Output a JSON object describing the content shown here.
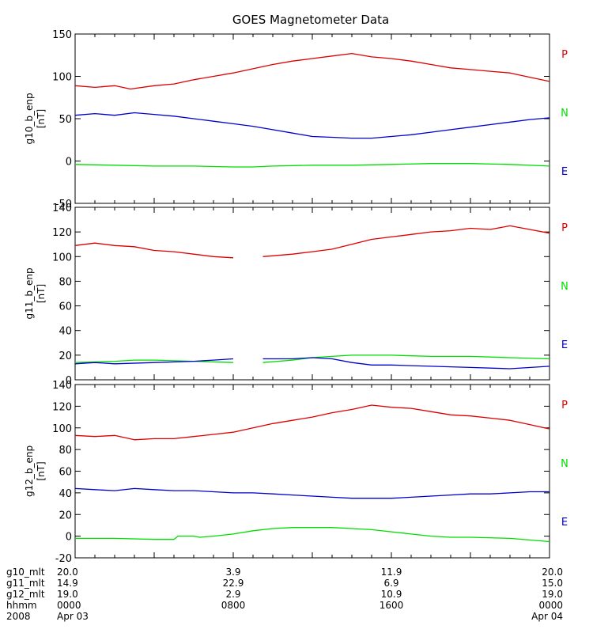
{
  "chart_data": {
    "type": "line",
    "title": "GOES Magnetometer Data",
    "x_domain": [
      0,
      24
    ],
    "panels": [
      {
        "ylabel": "g10_b_enp",
        "yunit": "[nT]",
        "ylim": [
          -50,
          150
        ],
        "yticks": [
          -50,
          0,
          50,
          100,
          150
        ],
        "series": [
          {
            "name": "P",
            "color": "#dd0000",
            "points": [
              [
                0,
                89
              ],
              [
                1,
                87
              ],
              [
                2,
                89
              ],
              [
                2.8,
                85
              ],
              [
                4,
                89
              ],
              [
                5,
                91
              ],
              [
                6,
                96
              ],
              [
                7,
                100
              ],
              [
                8,
                104
              ],
              [
                9,
                109
              ],
              [
                10,
                114
              ],
              [
                11,
                118
              ],
              [
                12,
                121
              ],
              [
                13,
                124
              ],
              [
                14,
                127
              ],
              [
                15,
                123
              ],
              [
                16,
                121
              ],
              [
                17,
                118
              ],
              [
                18,
                114
              ],
              [
                19,
                110
              ],
              [
                20,
                108
              ],
              [
                21,
                106
              ],
              [
                22,
                104
              ],
              [
                23,
                99
              ],
              [
                24,
                94
              ]
            ]
          },
          {
            "name": "N",
            "color": "#00dd00",
            "points": [
              [
                0,
                -4
              ],
              [
                2,
                -5
              ],
              [
                4,
                -6
              ],
              [
                6,
                -6
              ],
              [
                8,
                -7
              ],
              [
                9,
                -7
              ],
              [
                10,
                -6
              ],
              [
                12,
                -5
              ],
              [
                14,
                -5
              ],
              [
                16,
                -4
              ],
              [
                18,
                -3
              ],
              [
                20,
                -3
              ],
              [
                22,
                -4
              ],
              [
                24,
                -6
              ]
            ]
          },
          {
            "name": "E",
            "color": "#0000cc",
            "points": [
              [
                0,
                54
              ],
              [
                1,
                56
              ],
              [
                2,
                54
              ],
              [
                3,
                57
              ],
              [
                4,
                55
              ],
              [
                5,
                53
              ],
              [
                6,
                50
              ],
              [
                7,
                47
              ],
              [
                8,
                44
              ],
              [
                9,
                41
              ],
              [
                10,
                37
              ],
              [
                11,
                33
              ],
              [
                12,
                29
              ],
              [
                13,
                28
              ],
              [
                14,
                27
              ],
              [
                15,
                27
              ],
              [
                16,
                29
              ],
              [
                17,
                31
              ],
              [
                18,
                34
              ],
              [
                19,
                37
              ],
              [
                20,
                40
              ],
              [
                21,
                43
              ],
              [
                22,
                46
              ],
              [
                23,
                49
              ],
              [
                24,
                51
              ]
            ]
          }
        ]
      },
      {
        "ylabel": "g11_b_enp",
        "yunit": "[nT]",
        "ylim": [
          0,
          140
        ],
        "yticks": [
          0,
          20,
          40,
          60,
          80,
          100,
          120,
          140
        ],
        "series": [
          {
            "name": "P",
            "color": "#dd0000",
            "points": [
              [
                0,
                109
              ],
              [
                1,
                111
              ],
              [
                2,
                109
              ],
              [
                3,
                108
              ],
              [
                4,
                105
              ],
              [
                5,
                104
              ],
              [
                6,
                102
              ],
              [
                7,
                100
              ],
              [
                8,
                99
              ],
              [
                null,
                null
              ],
              [
                9.5,
                100
              ],
              [
                11,
                102
              ],
              [
                12,
                104
              ],
              [
                13,
                106
              ],
              [
                14,
                110
              ],
              [
                15,
                114
              ],
              [
                16,
                116
              ],
              [
                17,
                118
              ],
              [
                18,
                120
              ],
              [
                19,
                121
              ],
              [
                20,
                123
              ],
              [
                21,
                122
              ],
              [
                22,
                125
              ],
              [
                23,
                122
              ],
              [
                24,
                119
              ]
            ]
          },
          {
            "name": "N",
            "color": "#00dd00",
            "points": [
              [
                0,
                14
              ],
              [
                2,
                15
              ],
              [
                3,
                16
              ],
              [
                4,
                16
              ],
              [
                6,
                15
              ],
              [
                8,
                14
              ],
              [
                null,
                null
              ],
              [
                9.5,
                14
              ],
              [
                11,
                16
              ],
              [
                12,
                18
              ],
              [
                13,
                19
              ],
              [
                14,
                20
              ],
              [
                16,
                20
              ],
              [
                18,
                19
              ],
              [
                20,
                19
              ],
              [
                22,
                18
              ],
              [
                24,
                17
              ]
            ]
          },
          {
            "name": "E",
            "color": "#0000cc",
            "points": [
              [
                0,
                13
              ],
              [
                1,
                14
              ],
              [
                2,
                13
              ],
              [
                4,
                14
              ],
              [
                6,
                15
              ],
              [
                7,
                16
              ],
              [
                8,
                17
              ],
              [
                null,
                null
              ],
              [
                9.5,
                17
              ],
              [
                11,
                17
              ],
              [
                12,
                18
              ],
              [
                13,
                17
              ],
              [
                14,
                14
              ],
              [
                15,
                12
              ],
              [
                16,
                12
              ],
              [
                18,
                11
              ],
              [
                20,
                10
              ],
              [
                22,
                9
              ],
              [
                24,
                11
              ]
            ]
          }
        ]
      },
      {
        "ylabel": "g12_b_enp",
        "yunit": "[nT]",
        "ylim": [
          -20,
          140
        ],
        "yticks": [
          -20,
          0,
          20,
          40,
          60,
          80,
          100,
          120,
          140
        ],
        "series": [
          {
            "name": "P",
            "color": "#dd0000",
            "points": [
              [
                0,
                93
              ],
              [
                1,
                92
              ],
              [
                2,
                93
              ],
              [
                3,
                89
              ],
              [
                4,
                90
              ],
              [
                5,
                90
              ],
              [
                6,
                92
              ],
              [
                7,
                94
              ],
              [
                8,
                96
              ],
              [
                9,
                100
              ],
              [
                10,
                104
              ],
              [
                11,
                107
              ],
              [
                12,
                110
              ],
              [
                13,
                114
              ],
              [
                14,
                117
              ],
              [
                15,
                121
              ],
              [
                16,
                119
              ],
              [
                17,
                118
              ],
              [
                18,
                115
              ],
              [
                19,
                112
              ],
              [
                20,
                111
              ],
              [
                21,
                109
              ],
              [
                22,
                107
              ],
              [
                23,
                103
              ],
              [
                24,
                99
              ]
            ]
          },
          {
            "name": "N",
            "color": "#00dd00",
            "points": [
              [
                0,
                -2
              ],
              [
                2,
                -2
              ],
              [
                4,
                -3
              ],
              [
                5,
                -3
              ],
              [
                5.2,
                0
              ],
              [
                6,
                0
              ],
              [
                6.3,
                -1
              ],
              [
                7,
                0
              ],
              [
                8,
                2
              ],
              [
                9,
                5
              ],
              [
                10,
                7
              ],
              [
                11,
                8
              ],
              [
                12,
                8
              ],
              [
                13,
                8
              ],
              [
                14,
                7
              ],
              [
                15,
                6
              ],
              [
                16,
                4
              ],
              [
                17,
                2
              ],
              [
                18,
                0
              ],
              [
                19,
                -1
              ],
              [
                20,
                -1
              ],
              [
                22,
                -2
              ],
              [
                24,
                -5
              ]
            ]
          },
          {
            "name": "E",
            "color": "#0000cc",
            "points": [
              [
                0,
                44
              ],
              [
                1,
                43
              ],
              [
                2,
                42
              ],
              [
                3,
                44
              ],
              [
                4,
                43
              ],
              [
                5,
                42
              ],
              [
                6,
                42
              ],
              [
                7,
                41
              ],
              [
                8,
                40
              ],
              [
                9,
                40
              ],
              [
                10,
                39
              ],
              [
                11,
                38
              ],
              [
                12,
                37
              ],
              [
                13,
                36
              ],
              [
                14,
                35
              ],
              [
                15,
                35
              ],
              [
                16,
                35
              ],
              [
                17,
                36
              ],
              [
                18,
                37
              ],
              [
                19,
                38
              ],
              [
                20,
                39
              ],
              [
                21,
                39
              ],
              [
                22,
                40
              ],
              [
                23,
                41
              ],
              [
                24,
                41
              ]
            ]
          }
        ]
      }
    ],
    "time_table": {
      "positions": [
        0,
        8,
        16,
        24
      ],
      "rows": [
        {
          "label": "g10_mlt",
          "values": [
            "20.0",
            "3.9",
            "11.9",
            "20.0"
          ]
        },
        {
          "label": "g11_mlt",
          "values": [
            "14.9",
            "22.9",
            "6.9",
            "15.0"
          ]
        },
        {
          "label": "g12_mlt",
          "values": [
            "19.0",
            "2.9",
            "10.9",
            "19.0"
          ]
        },
        {
          "label": "hhmm",
          "values": [
            "0000",
            "0800",
            "1600",
            "0000"
          ]
        },
        {
          "label": "2008",
          "values": [
            "Apr 03",
            "",
            "",
            "Apr 04"
          ]
        }
      ]
    }
  }
}
